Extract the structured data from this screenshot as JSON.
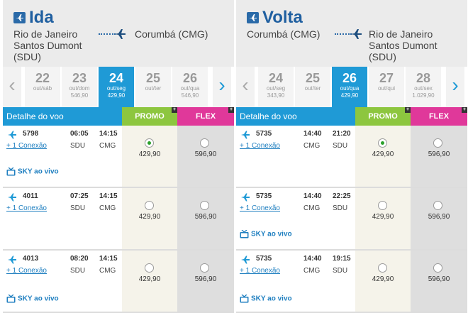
{
  "panels": [
    {
      "title": "Ida",
      "origin": [
        "Rio de Janeiro",
        "Santos Dumont",
        "(SDU)"
      ],
      "destination": "Corumbá (CMG)",
      "dates": [
        {
          "day": "22",
          "weekday": "out/sáb",
          "price": ""
        },
        {
          "day": "23",
          "weekday": "out/dom",
          "price": "546,90"
        },
        {
          "day": "24",
          "weekday": "out/seg",
          "price": "429,90",
          "selected": true
        },
        {
          "day": "25",
          "weekday": "out/ter",
          "price": ""
        },
        {
          "day": "26",
          "weekday": "out/qua",
          "price": "546,90"
        }
      ],
      "header": {
        "detail": "Detalhe do voo",
        "promo": "PROMO",
        "flex": "FLEX"
      },
      "flights": [
        {
          "number": "5798",
          "dep": "06:05",
          "arr": "14:15",
          "from": "SDU",
          "to": "CMG",
          "connection": "+ 1 Conexão",
          "live": "SKY ao vivo",
          "promo": "429,90",
          "flex": "596,90",
          "promo_selected": true
        },
        {
          "number": "4011",
          "dep": "07:25",
          "arr": "14:15",
          "from": "SDU",
          "to": "CMG",
          "connection": "+ 1 Conexão",
          "live": "",
          "promo": "429,90",
          "flex": "596,90",
          "promo_selected": false
        },
        {
          "number": "4013",
          "dep": "08:20",
          "arr": "14:15",
          "from": "SDU",
          "to": "CMG",
          "connection": "+ 1 Conexão",
          "live": "SKY ao vivo",
          "promo": "429,90",
          "flex": "596,90",
          "promo_selected": false
        }
      ]
    },
    {
      "title": "Volta",
      "origin": [
        "Corumbá (CMG)"
      ],
      "destination": [
        "Rio de Janeiro",
        "Santos Dumont",
        "(SDU)"
      ],
      "dates": [
        {
          "day": "24",
          "weekday": "out/seg",
          "price": "343,90"
        },
        {
          "day": "25",
          "weekday": "out/ter",
          "price": ""
        },
        {
          "day": "26",
          "weekday": "out/qua",
          "price": "429,90",
          "selected": true
        },
        {
          "day": "27",
          "weekday": "out/qui",
          "price": ""
        },
        {
          "day": "28",
          "weekday": "out/sex",
          "price": "1.029,90"
        }
      ],
      "header": {
        "detail": "Detalhe do voo",
        "promo": "PROMO",
        "flex": "FLEX"
      },
      "flights": [
        {
          "number": "5735",
          "dep": "14:40",
          "arr": "21:20",
          "from": "CMG",
          "to": "SDU",
          "connection": "+ 1 Conexão",
          "live": "",
          "promo": "429,90",
          "flex": "596,90",
          "promo_selected": true
        },
        {
          "number": "5735",
          "dep": "14:40",
          "arr": "22:25",
          "from": "CMG",
          "to": "SDU",
          "connection": "+ 1 Conexão",
          "live": "SKY ao vivo",
          "promo": "429,90",
          "flex": "596,90",
          "promo_selected": false
        },
        {
          "number": "5735",
          "dep": "14:40",
          "arr": "19:15",
          "from": "CMG",
          "to": "SDU",
          "connection": "+ 1 Conexão",
          "live": "SKY ao vivo",
          "promo": "429,90",
          "flex": "596,90",
          "promo_selected": false
        }
      ]
    }
  ],
  "colors": {
    "brand_blue": "#1f9ad6",
    "title_blue": "#1f5fa0",
    "promo_green": "#8dc63f",
    "flex_pink": "#e0389a"
  },
  "icons": [
    "plane-icon",
    "tv-icon",
    "chevron-left-icon",
    "chevron-right-icon",
    "plus-icon"
  ]
}
